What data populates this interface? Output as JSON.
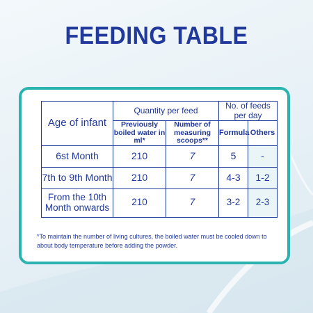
{
  "title": "FEEDING TABLE",
  "table": {
    "age_header": "Age of infant",
    "quantity_header": "Quantity per feed",
    "feeds_header": "No. of feeds per day",
    "sub_headers": {
      "water": "Previously boiled water in ml*",
      "scoops": "Number of measuring scoops**",
      "formula": "Formula",
      "others": "Others"
    },
    "rows": [
      {
        "age": "6st Month",
        "water": "210",
        "scoops": "7",
        "formula": "5",
        "others": "-"
      },
      {
        "age": "7th to 9th Month",
        "water": "210",
        "scoops": "7",
        "formula": "4-3",
        "others": "1-2"
      },
      {
        "age": "From the 10th Month onwards",
        "water": "210",
        "scoops": "7",
        "formula": "3-2",
        "others": "2-3"
      }
    ]
  },
  "footnote": "*To maintain the number of living cultures, the boiled water must be cooled down to about body temperature before adding the powder.",
  "colors": {
    "navy": "#20399a",
    "teal_border": "#2bb3b0",
    "background": "#e6f0f6"
  }
}
